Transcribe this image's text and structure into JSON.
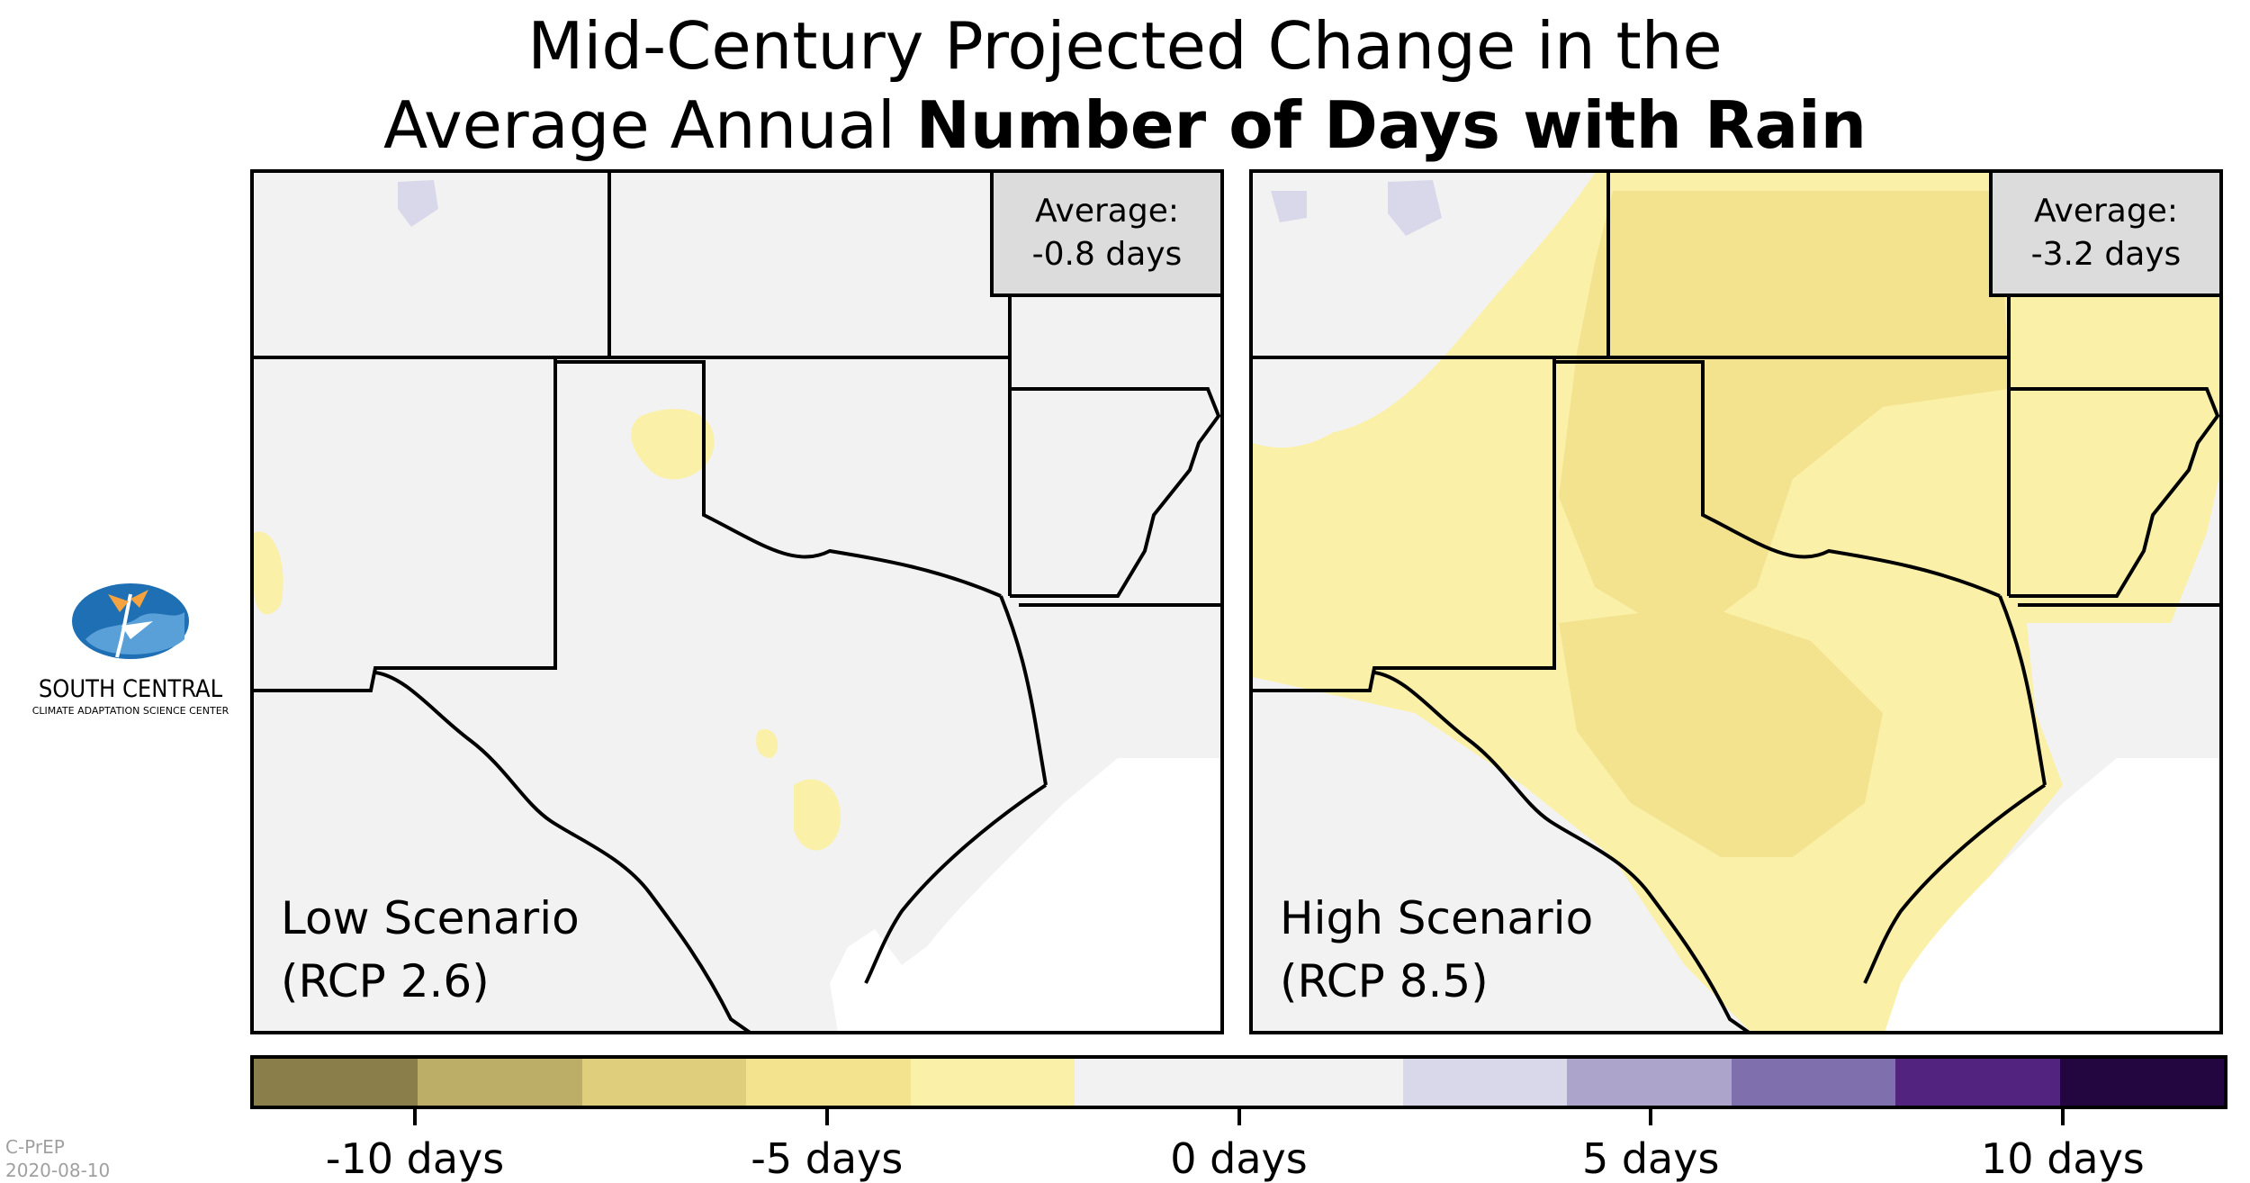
{
  "title": {
    "line1": "Mid-Century Projected Change in the",
    "line2_regular": "Average Annual ",
    "line2_bold": "Number of Days with Rain"
  },
  "panels": [
    {
      "average_label": "Average:",
      "average_value": "-0.8 days",
      "scenario_name": "Low Scenario",
      "scenario_rcp": "(RCP 2.6)"
    },
    {
      "average_label": "Average:",
      "average_value": "-3.2 days",
      "scenario_name": "High Scenario",
      "scenario_rcp": "(RCP 8.5)"
    }
  ],
  "logo": {
    "name": "SOUTH CENTRAL",
    "subtitle": "CLIMATE ADAPTATION SCIENCE CENTER"
  },
  "legend": {
    "colors": [
      "#8a7f4a",
      "#bdae67",
      "#dfce7b",
      "#f3e38f",
      "#faf0a8",
      "#f2f2f2",
      "#f2f2f2",
      "#d9d8ea",
      "#ada4cc",
      "#7f6fac",
      "#52237f",
      "#23053f"
    ],
    "ticks": [
      "-10 days",
      "-5 days",
      "0 days",
      "5 days",
      "10 days"
    ]
  },
  "credit": {
    "line1": "C-PrEP",
    "line2": "2020-08-10"
  },
  "colors": {
    "no_change": "#f2f2f2",
    "decrease_light": "#faf0a8",
    "decrease_mid": "#f3e38f",
    "increase_light": "#d9d8ea"
  }
}
